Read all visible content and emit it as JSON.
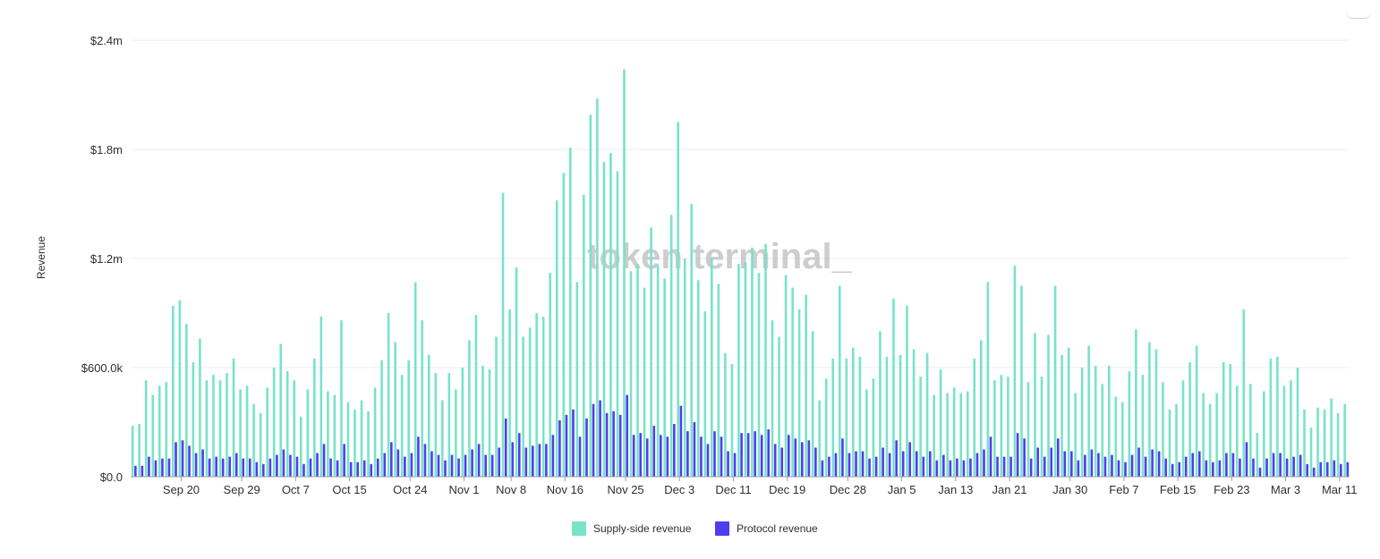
{
  "watermark": "token terminal_",
  "colors": {
    "supply_side": "#78e3c9",
    "protocol": "#4f3df0",
    "grid": "#ececec",
    "axis": "#9aa0a6"
  },
  "chart_data": {
    "type": "bar",
    "ylabel": "Revenue",
    "xlabel": "",
    "ylim": [
      0,
      2400000
    ],
    "yticks": [
      {
        "value": 0,
        "label": "$0.0"
      },
      {
        "value": 600000,
        "label": "$600.0k"
      },
      {
        "value": 1200000,
        "label": "$1.2m"
      },
      {
        "value": 1800000,
        "label": "$1.8m"
      },
      {
        "value": 2400000,
        "label": "$2.4m"
      }
    ],
    "xticks": [
      {
        "index": 7,
        "label": "Sep 20"
      },
      {
        "index": 16,
        "label": "Sep 29"
      },
      {
        "index": 24,
        "label": "Oct 7"
      },
      {
        "index": 32,
        "label": "Oct 15"
      },
      {
        "index": 41,
        "label": "Oct 24"
      },
      {
        "index": 49,
        "label": "Nov 1"
      },
      {
        "index": 56,
        "label": "Nov 8"
      },
      {
        "index": 64,
        "label": "Nov 16"
      },
      {
        "index": 73,
        "label": "Nov 25"
      },
      {
        "index": 81,
        "label": "Dec 3"
      },
      {
        "index": 89,
        "label": "Dec 11"
      },
      {
        "index": 97,
        "label": "Dec 19"
      },
      {
        "index": 106,
        "label": "Dec 28"
      },
      {
        "index": 114,
        "label": "Jan 5"
      },
      {
        "index": 122,
        "label": "Jan 13"
      },
      {
        "index": 130,
        "label": "Jan 21"
      },
      {
        "index": 139,
        "label": "Jan 30"
      },
      {
        "index": 147,
        "label": "Feb 7"
      },
      {
        "index": 155,
        "label": "Feb 15"
      },
      {
        "index": 163,
        "label": "Feb 23"
      },
      {
        "index": 171,
        "label": "Mar 3"
      },
      {
        "index": 179,
        "label": "Mar 11"
      }
    ],
    "legend_position": "bottom-center",
    "grid": true,
    "series": [
      {
        "name": "Supply-side revenue",
        "color": "#78e3c9",
        "values": [
          280000,
          290000,
          530000,
          450000,
          500000,
          520000,
          940000,
          970000,
          840000,
          630000,
          760000,
          530000,
          560000,
          530000,
          570000,
          650000,
          480000,
          500000,
          400000,
          350000,
          490000,
          600000,
          730000,
          580000,
          530000,
          330000,
          480000,
          650000,
          880000,
          470000,
          450000,
          860000,
          410000,
          370000,
          420000,
          360000,
          490000,
          640000,
          900000,
          740000,
          560000,
          640000,
          1070000,
          860000,
          670000,
          570000,
          420000,
          570000,
          480000,
          600000,
          750000,
          890000,
          610000,
          590000,
          770000,
          1560000,
          920000,
          1150000,
          770000,
          820000,
          900000,
          880000,
          1120000,
          1520000,
          1670000,
          1810000,
          1070000,
          1550000,
          1990000,
          2080000,
          1730000,
          1780000,
          1680000,
          2240000,
          1130000,
          1170000,
          1040000,
          1370000,
          1160000,
          1090000,
          1440000,
          1950000,
          1200000,
          1500000,
          1080000,
          910000,
          1200000,
          1060000,
          680000,
          620000,
          1170000,
          1180000,
          1260000,
          1120000,
          1280000,
          860000,
          770000,
          1110000,
          1040000,
          920000,
          1000000,
          800000,
          420000,
          540000,
          650000,
          1050000,
          650000,
          710000,
          660000,
          480000,
          540000,
          800000,
          660000,
          980000,
          670000,
          940000,
          700000,
          550000,
          680000,
          450000,
          590000,
          460000,
          490000,
          460000,
          470000,
          650000,
          750000,
          1070000,
          530000,
          560000,
          550000,
          1160000,
          1050000,
          520000,
          790000,
          550000,
          780000,
          1050000,
          670000,
          710000,
          460000,
          600000,
          720000,
          610000,
          510000,
          610000,
          440000,
          410000,
          580000,
          810000,
          560000,
          740000,
          700000,
          520000,
          370000,
          400000,
          530000,
          630000,
          720000,
          460000,
          400000,
          460000,
          630000,
          620000,
          500000,
          920000,
          510000,
          240000,
          470000,
          650000,
          660000,
          500000,
          530000,
          600000,
          370000,
          270000,
          380000,
          370000,
          430000,
          350000,
          400000
        ]
      },
      {
        "name": "Protocol revenue",
        "color": "#4f3df0",
        "values": [
          60000,
          60000,
          110000,
          90000,
          100000,
          100000,
          190000,
          200000,
          170000,
          130000,
          150000,
          100000,
          110000,
          100000,
          110000,
          130000,
          100000,
          100000,
          80000,
          70000,
          100000,
          120000,
          150000,
          120000,
          110000,
          70000,
          100000,
          130000,
          180000,
          100000,
          90000,
          180000,
          80000,
          80000,
          90000,
          70000,
          100000,
          130000,
          190000,
          150000,
          110000,
          130000,
          220000,
          180000,
          140000,
          120000,
          90000,
          120000,
          100000,
          120000,
          150000,
          180000,
          120000,
          120000,
          160000,
          320000,
          190000,
          240000,
          160000,
          170000,
          180000,
          180000,
          230000,
          310000,
          340000,
          370000,
          220000,
          320000,
          400000,
          420000,
          350000,
          360000,
          340000,
          450000,
          230000,
          240000,
          210000,
          280000,
          230000,
          220000,
          290000,
          390000,
          250000,
          300000,
          220000,
          180000,
          250000,
          220000,
          140000,
          130000,
          240000,
          240000,
          250000,
          230000,
          260000,
          180000,
          160000,
          230000,
          210000,
          190000,
          200000,
          160000,
          90000,
          110000,
          130000,
          210000,
          130000,
          140000,
          140000,
          100000,
          110000,
          160000,
          130000,
          200000,
          140000,
          190000,
          140000,
          110000,
          140000,
          90000,
          120000,
          90000,
          100000,
          90000,
          100000,
          130000,
          150000,
          220000,
          110000,
          110000,
          110000,
          240000,
          210000,
          100000,
          160000,
          110000,
          160000,
          210000,
          140000,
          140000,
          90000,
          120000,
          150000,
          130000,
          110000,
          120000,
          90000,
          80000,
          120000,
          160000,
          110000,
          150000,
          140000,
          100000,
          70000,
          80000,
          110000,
          130000,
          140000,
          90000,
          80000,
          90000,
          130000,
          130000,
          100000,
          190000,
          100000,
          50000,
          100000,
          130000,
          130000,
          100000,
          110000,
          120000,
          70000,
          50000,
          80000,
          80000,
          90000,
          70000,
          80000
        ]
      }
    ]
  }
}
